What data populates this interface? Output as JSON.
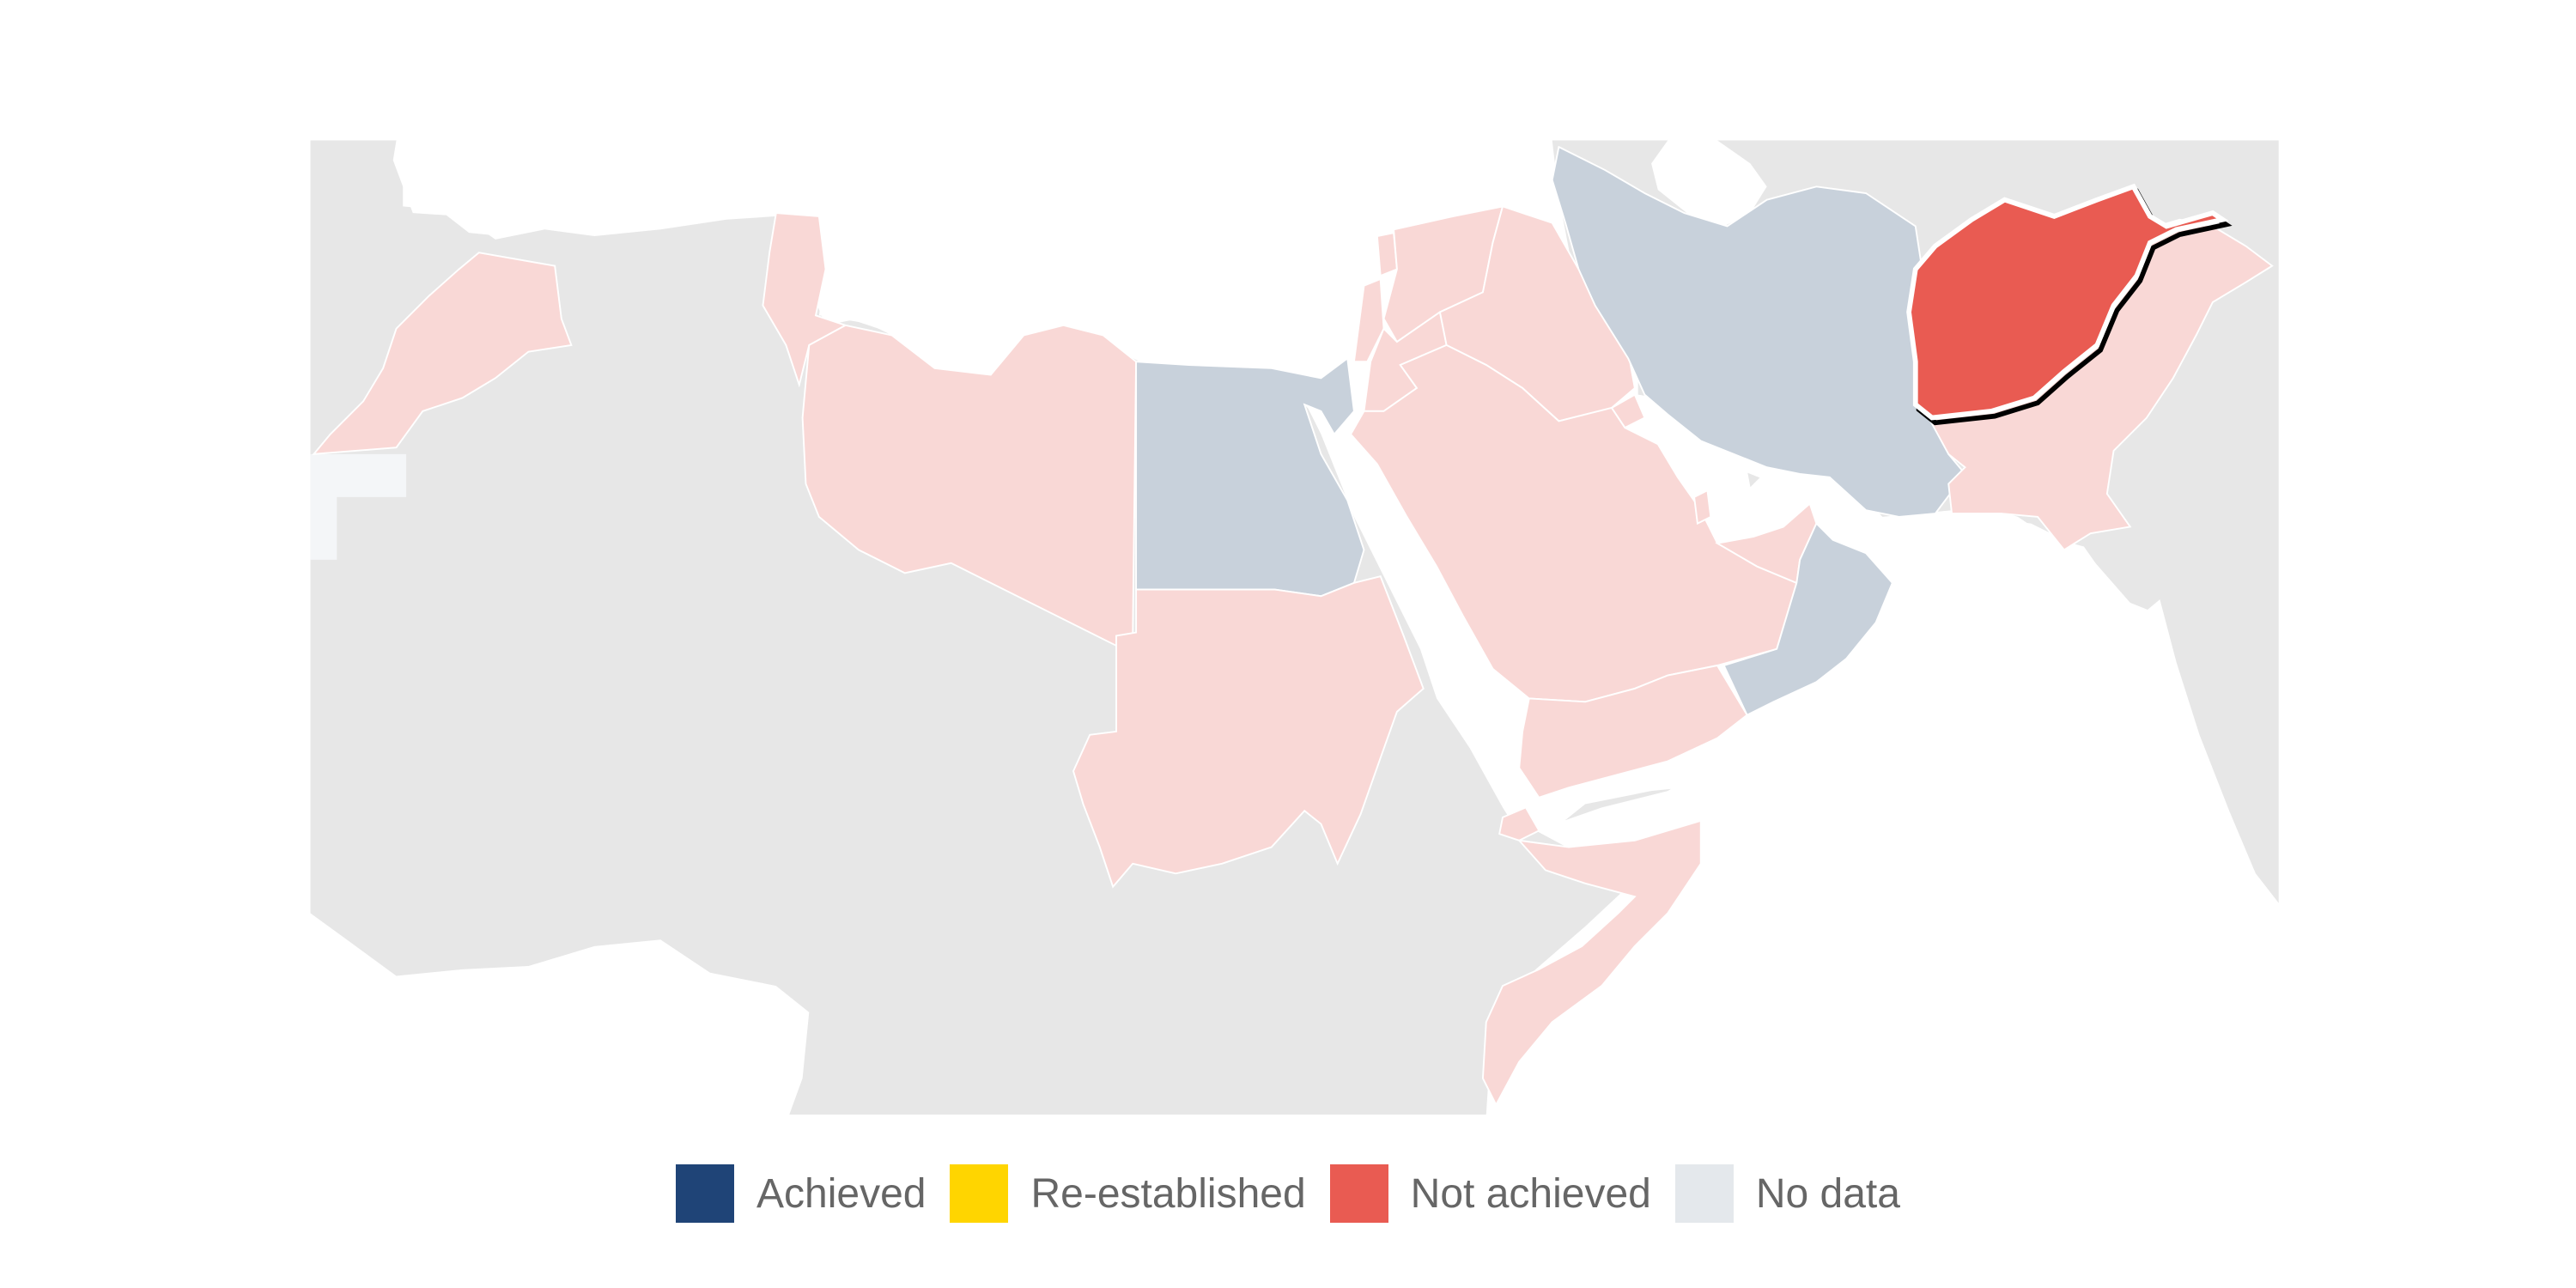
{
  "map": {
    "countries": [
      {
        "name": "Morocco",
        "status": "Not achieved",
        "highlighted": false
      },
      {
        "name": "Algeria",
        "status": "No data",
        "highlighted": false
      },
      {
        "name": "Tunisia",
        "status": "Not achieved",
        "highlighted": false
      },
      {
        "name": "Libya",
        "status": "Not achieved",
        "highlighted": false
      },
      {
        "name": "Egypt",
        "status": "Achieved",
        "highlighted": false
      },
      {
        "name": "Sudan",
        "status": "Not achieved",
        "highlighted": false
      },
      {
        "name": "Somalia",
        "status": "Not achieved",
        "highlighted": false
      },
      {
        "name": "Djibouti",
        "status": "Not achieved",
        "highlighted": false
      },
      {
        "name": "Lebanon",
        "status": "Not achieved",
        "highlighted": false
      },
      {
        "name": "Syria",
        "status": "Not achieved",
        "highlighted": false
      },
      {
        "name": "Jordan",
        "status": "Not achieved",
        "highlighted": false
      },
      {
        "name": "Palestine",
        "status": "Not achieved",
        "highlighted": false
      },
      {
        "name": "Iraq",
        "status": "Not achieved",
        "highlighted": false
      },
      {
        "name": "Kuwait",
        "status": "Not achieved",
        "highlighted": false
      },
      {
        "name": "Saudi Arabia",
        "status": "Not achieved",
        "highlighted": false
      },
      {
        "name": "Bahrain",
        "status": "Not achieved",
        "highlighted": false
      },
      {
        "name": "Qatar",
        "status": "Not achieved",
        "highlighted": false
      },
      {
        "name": "United Arab Emirates",
        "status": "Not achieved",
        "highlighted": false
      },
      {
        "name": "Yemen",
        "status": "Not achieved",
        "highlighted": false
      },
      {
        "name": "Oman",
        "status": "Achieved",
        "highlighted": false
      },
      {
        "name": "Iran",
        "status": "Achieved",
        "highlighted": false
      },
      {
        "name": "Afghanistan",
        "status": "Not achieved",
        "highlighted": true
      },
      {
        "name": "Pakistan",
        "status": "Not achieved",
        "highlighted": false
      }
    ]
  },
  "legend": {
    "items": [
      {
        "label": "Achieved",
        "color": "#1f4477"
      },
      {
        "label": "Re-established",
        "color": "#ffd500"
      },
      {
        "label": "Not achieved",
        "color": "#e95b52"
      },
      {
        "label": "No data",
        "color": "#e4e8ec"
      }
    ]
  },
  "colors": {
    "not_in_scope": "#e7e7e7",
    "achieved_muted": "#c8d1db",
    "not_achieved_muted": "#f9d8d6",
    "not_achieved_highlight": "#e95b52",
    "no_data_fill": "#f4f6f8",
    "water": "#ffffff",
    "border": "#ffffff"
  }
}
